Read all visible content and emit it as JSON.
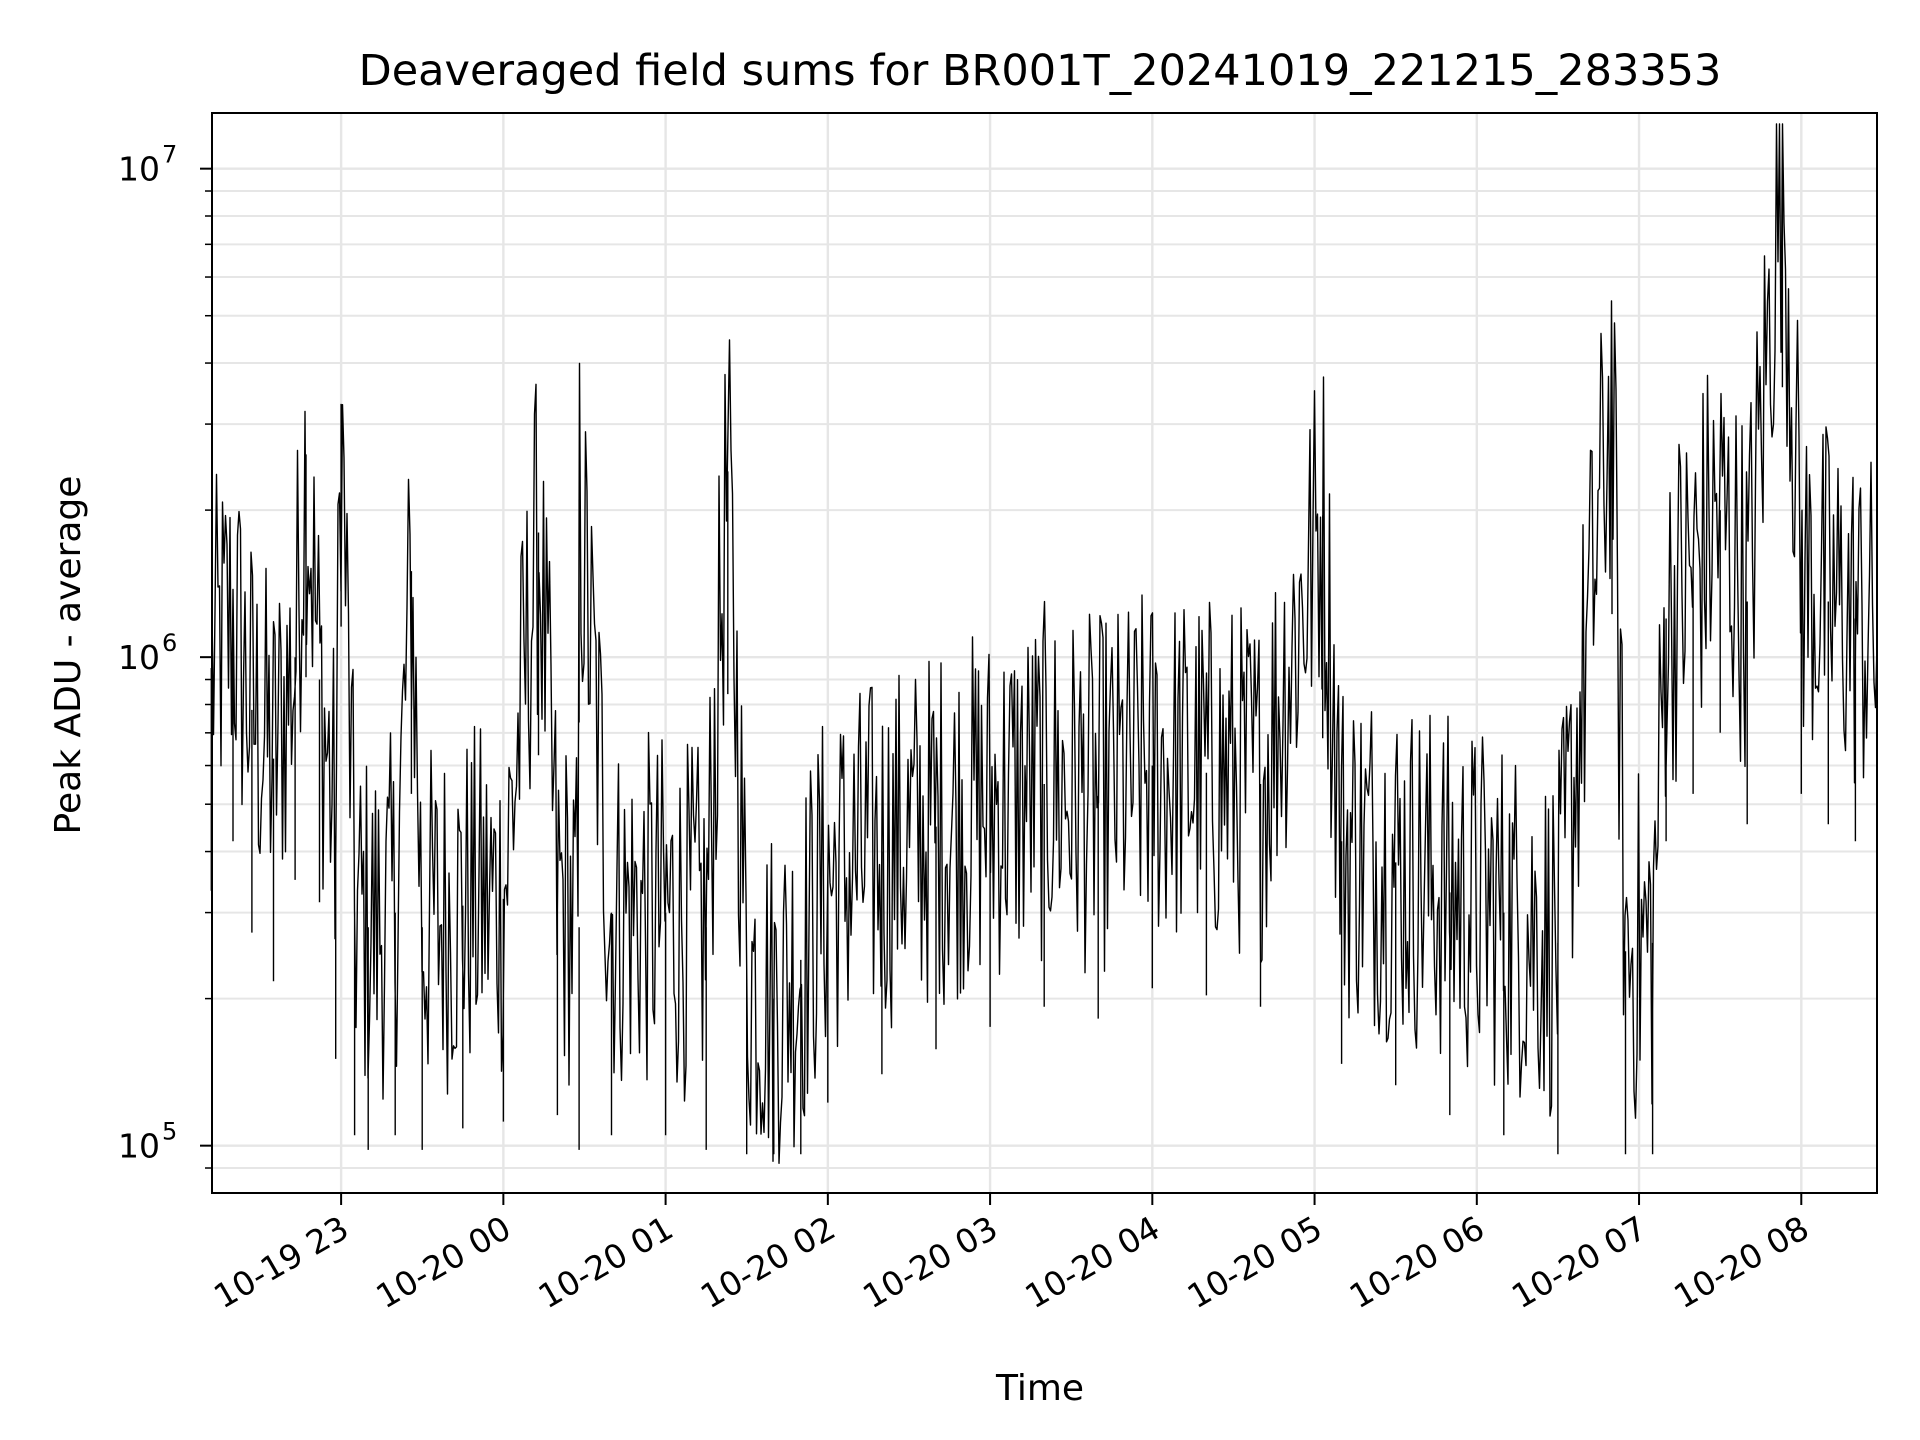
{
  "chart_data": {
    "type": "line",
    "title": "Deaveraged field sums for BR001T_20241019_221215_283353",
    "xlabel": "Time",
    "ylabel": "Peak ADU - average",
    "xscale": "time",
    "yscale": "log",
    "xlim": [
      "2024-10-19 22:12:15",
      "2024-10-20 08:28:00"
    ],
    "ylim": [
      80000,
      13000000
    ],
    "grid": true,
    "line_color": "#000000",
    "grid_color": "#e6e6e6",
    "x_ticks": [
      {
        "value": "2024-10-19 23:00",
        "label": "10-19 23"
      },
      {
        "value": "2024-10-20 00:00",
        "label": "10-20 00"
      },
      {
        "value": "2024-10-20 01:00",
        "label": "10-20 01"
      },
      {
        "value": "2024-10-20 02:00",
        "label": "10-20 02"
      },
      {
        "value": "2024-10-20 03:00",
        "label": "10-20 03"
      },
      {
        "value": "2024-10-20 04:00",
        "label": "10-20 04"
      },
      {
        "value": "2024-10-20 05:00",
        "label": "10-20 05"
      },
      {
        "value": "2024-10-20 06:00",
        "label": "10-20 06"
      },
      {
        "value": "2024-10-20 07:00",
        "label": "10-20 07"
      },
      {
        "value": "2024-10-20 08:00",
        "label": "10-20 08"
      }
    ],
    "y_ticks": [
      {
        "value": 100000,
        "base": "10",
        "exp": "5"
      },
      {
        "value": 1000000,
        "base": "10",
        "exp": "6"
      },
      {
        "value": 10000000,
        "base": "10",
        "exp": "7"
      }
    ],
    "series": [
      {
        "points": [
          [
            "2024-10-19 22:12",
            950000
          ],
          [
            "2024-10-19 22:20",
            1200000
          ],
          [
            "2024-10-19 22:27",
            780000
          ],
          [
            "2024-10-19 22:35",
            620000
          ],
          [
            "2024-10-19 22:43",
            1000000
          ],
          [
            "2024-10-19 22:47",
            2600000
          ],
          [
            "2024-10-19 22:52",
            900000
          ],
          [
            "2024-10-19 22:58",
            430000
          ],
          [
            "2024-10-19 23:00",
            3300000
          ],
          [
            "2024-10-19 23:05",
            300000
          ],
          [
            "2024-10-19 23:10",
            280000
          ],
          [
            "2024-10-19 23:20",
            300000
          ],
          [
            "2024-10-19 23:26",
            1500000
          ],
          [
            "2024-10-19 23:30",
            280000
          ],
          [
            "2024-10-19 23:45",
            310000
          ],
          [
            "2024-10-20 00:00",
            320000
          ],
          [
            "2024-10-20 00:13",
            1800000
          ],
          [
            "2024-10-20 00:20",
            330000
          ],
          [
            "2024-10-20 00:28",
            280000
          ],
          [
            "2024-10-20 00:28",
            2100000
          ],
          [
            "2024-10-20 00:40",
            300000
          ],
          [
            "2024-10-20 01:00",
            300000
          ],
          [
            "2024-10-20 01:15",
            280000
          ],
          [
            "2024-10-20 01:23",
            2400000
          ],
          [
            "2024-10-20 01:30",
            230000
          ],
          [
            "2024-10-20 01:40",
            200000
          ],
          [
            "2024-10-20 01:50",
            240000
          ],
          [
            "2024-10-20 02:00",
            350000
          ],
          [
            "2024-10-20 02:20",
            400000
          ],
          [
            "2024-10-20 02:40",
            450000
          ],
          [
            "2024-10-20 03:00",
            500000
          ],
          [
            "2024-10-20 03:20",
            550000
          ],
          [
            "2024-10-20 03:40",
            520000
          ],
          [
            "2024-10-20 04:00",
            600000
          ],
          [
            "2024-10-20 04:20",
            580000
          ],
          [
            "2024-10-20 04:40",
            550000
          ],
          [
            "2024-10-20 05:03",
            1950000
          ],
          [
            "2024-10-20 05:10",
            420000
          ],
          [
            "2024-10-20 05:30",
            380000
          ],
          [
            "2024-10-20 05:50",
            330000
          ],
          [
            "2024-10-20 06:10",
            300000
          ],
          [
            "2024-10-20 06:30",
            260000
          ],
          [
            "2024-10-20 06:50",
            3500000
          ],
          [
            "2024-10-20 06:55",
            250000
          ],
          [
            "2024-10-20 07:05",
            260000
          ],
          [
            "2024-10-20 07:10",
            1200000
          ],
          [
            "2024-10-20 07:20",
            1500000
          ],
          [
            "2024-10-20 07:30",
            2000000
          ],
          [
            "2024-10-20 07:40",
            1300000
          ],
          [
            "2024-10-20 07:53",
            10200000
          ],
          [
            "2024-10-20 08:00",
            1500000
          ],
          [
            "2024-10-20 08:10",
            1300000
          ],
          [
            "2024-10-20 08:20",
            1200000
          ],
          [
            "2024-10-20 08:28",
            1100000
          ]
        ]
      }
    ]
  }
}
